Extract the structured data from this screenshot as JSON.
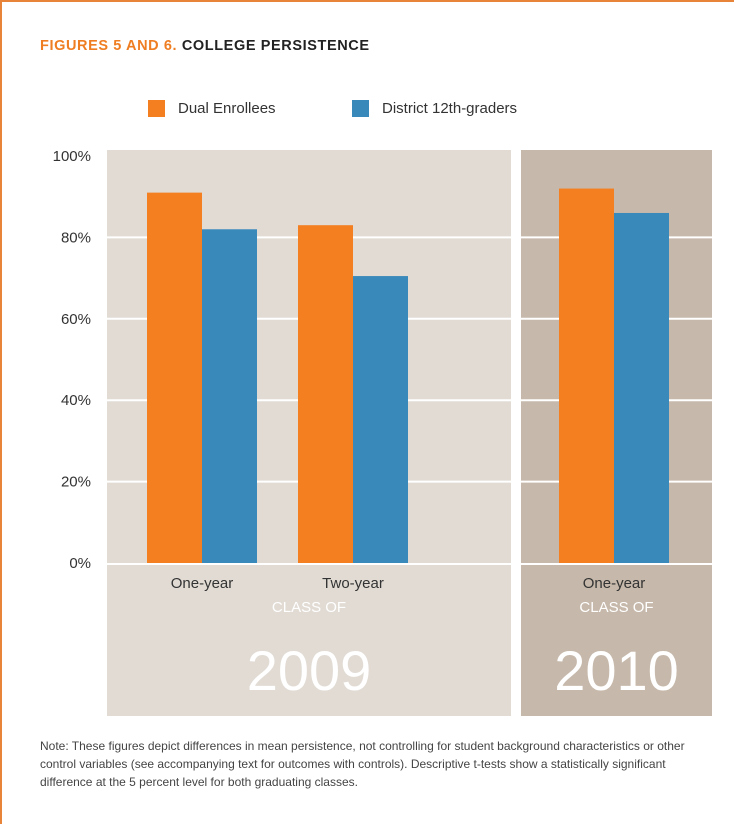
{
  "header": {
    "title_prefix": "FIGURES 5 AND 6.",
    "title_main": "COLLEGE PERSISTENCE"
  },
  "legend": [
    {
      "label": "Dual Enrollees",
      "color": "#f47f20"
    },
    {
      "label": "District 12th-graders",
      "color": "#3a89bb"
    }
  ],
  "colors": {
    "panel_2009": "#e1dbd4",
    "panel_2010": "#c6b8aa",
    "accent_border": "#e8833a"
  },
  "chart_data": [
    {
      "type": "bar",
      "panel_label": "CLASS OF",
      "panel_year": "2009",
      "categories": [
        "One-year",
        "Two-year"
      ],
      "series": [
        {
          "name": "Dual Enrollees",
          "values": [
            91,
            83
          ]
        },
        {
          "name": "District 12th-graders",
          "values": [
            82,
            70.5
          ]
        }
      ],
      "ylim": [
        0,
        100
      ],
      "yticks": [
        "0%",
        "20%",
        "40%",
        "60%",
        "80%",
        "100%"
      ],
      "grid": true,
      "legend_position": "top"
    },
    {
      "type": "bar",
      "panel_label": "CLASS OF",
      "panel_year": "2010",
      "categories": [
        "One-year"
      ],
      "series": [
        {
          "name": "Dual Enrollees",
          "values": [
            92
          ]
        },
        {
          "name": "District 12th-graders",
          "values": [
            86
          ]
        }
      ],
      "ylim": [
        0,
        100
      ],
      "grid": true
    }
  ],
  "note": "Note: These figures depict differences in mean persistence, not controlling for student background characteristics or other control variables (see accompanying text for outcomes with controls). Descriptive t-tests show a statistically significant difference at the 5 percent level for both graduating classes."
}
